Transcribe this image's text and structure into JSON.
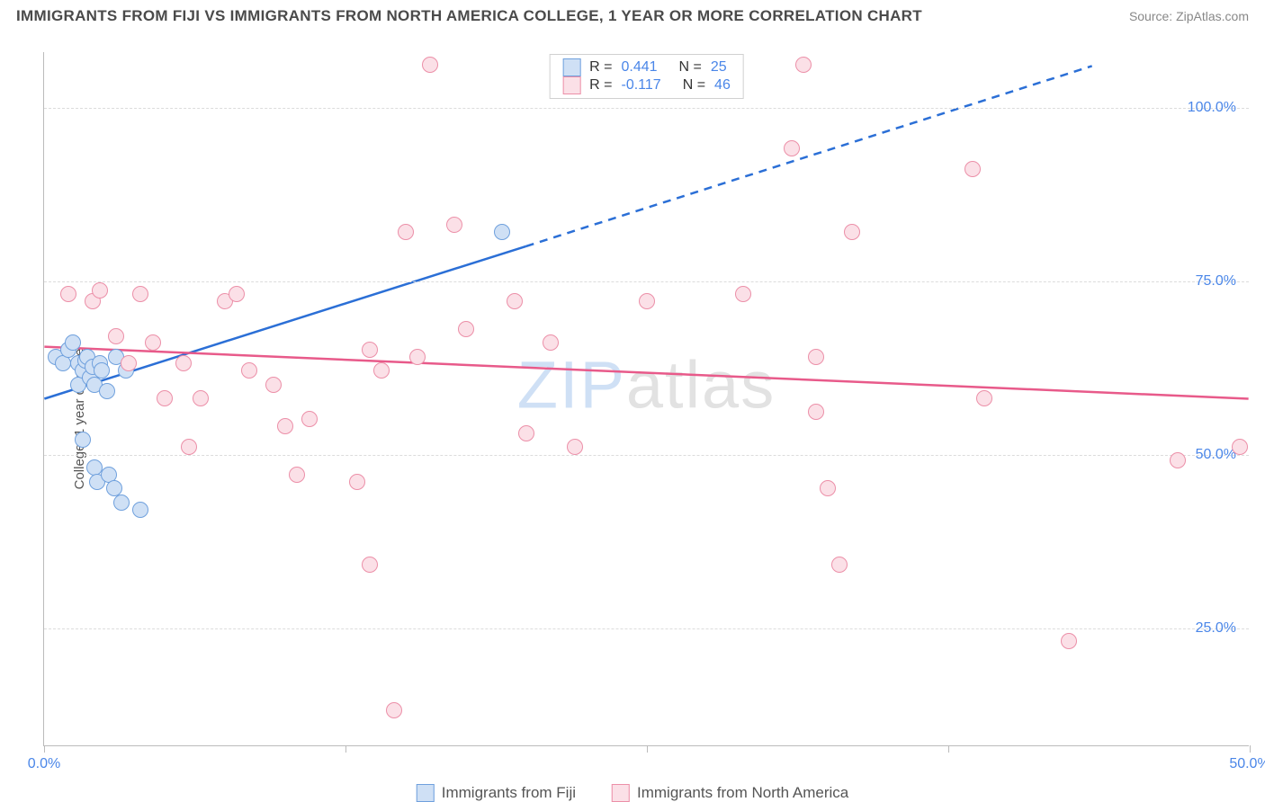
{
  "title": "IMMIGRANTS FROM FIJI VS IMMIGRANTS FROM NORTH AMERICA COLLEGE, 1 YEAR OR MORE CORRELATION CHART",
  "source": "Source: ZipAtlas.com",
  "ylabel": "College, 1 year or more",
  "watermark": {
    "part1": "ZIP",
    "part2": "atlas"
  },
  "chart": {
    "type": "scatter",
    "background_color": "#ffffff",
    "grid_color": "#dcdcdc",
    "axis_color": "#bbbbbb",
    "xlim": [
      0,
      50
    ],
    "ylim": [
      8,
      108
    ],
    "xticks": [
      0,
      12.5,
      25,
      37.5,
      50
    ],
    "xtick_labels": {
      "0": "0.0%",
      "50": "50.0%"
    },
    "yticks": [
      25,
      50,
      75,
      100
    ],
    "ytick_labels": {
      "25": "25.0%",
      "50": "50.0%",
      "75": "75.0%",
      "100": "100.0%"
    },
    "marker_radius": 9,
    "marker_border_width": 1.5,
    "series": [
      {
        "name": "Immigrants from Fiji",
        "fill_color": "#cfe0f5",
        "stroke_color": "#6fa0dd",
        "line_color": "#2b6fd6",
        "R": "0.441",
        "N": "25",
        "trend": {
          "x1": 0,
          "y1": 58,
          "x2": 20,
          "y2": 80,
          "x2_ext": 43.5,
          "y2_ext": 106
        },
        "points": [
          [
            0.5,
            64
          ],
          [
            0.8,
            63
          ],
          [
            1.0,
            65
          ],
          [
            1.2,
            66
          ],
          [
            1.4,
            60
          ],
          [
            1.4,
            63
          ],
          [
            1.6,
            62
          ],
          [
            1.7,
            63.5
          ],
          [
            1.8,
            64
          ],
          [
            1.9,
            61
          ],
          [
            2.0,
            62.5
          ],
          [
            2.1,
            60
          ],
          [
            2.1,
            48
          ],
          [
            2.2,
            46
          ],
          [
            2.3,
            63
          ],
          [
            2.4,
            62
          ],
          [
            2.6,
            59
          ],
          [
            2.7,
            47
          ],
          [
            2.9,
            45
          ],
          [
            3.0,
            64
          ],
          [
            3.2,
            43
          ],
          [
            3.4,
            62
          ],
          [
            4.0,
            42
          ],
          [
            1.6,
            52
          ],
          [
            19.0,
            82
          ]
        ]
      },
      {
        "name": "Immigrants from North America",
        "fill_color": "#fbe0e7",
        "stroke_color": "#ec8fa8",
        "line_color": "#e85a8a",
        "R": "-0.117",
        "N": "46",
        "trend": {
          "x1": 0,
          "y1": 65.5,
          "x2": 50,
          "y2": 58
        },
        "points": [
          [
            1.0,
            73
          ],
          [
            2.0,
            72
          ],
          [
            2.3,
            73.5
          ],
          [
            3.0,
            67
          ],
          [
            3.5,
            63
          ],
          [
            4.0,
            73
          ],
          [
            4.5,
            66
          ],
          [
            5.0,
            58
          ],
          [
            5.8,
            63
          ],
          [
            6.0,
            51
          ],
          [
            6.5,
            58
          ],
          [
            7.5,
            72
          ],
          [
            8.0,
            73
          ],
          [
            8.5,
            62
          ],
          [
            9.5,
            60
          ],
          [
            10.0,
            54
          ],
          [
            10.5,
            47
          ],
          [
            11.0,
            55
          ],
          [
            13.0,
            46
          ],
          [
            13.5,
            34
          ],
          [
            14.0,
            62
          ],
          [
            14.5,
            13
          ],
          [
            15.0,
            82
          ],
          [
            15.5,
            64
          ],
          [
            16.0,
            106
          ],
          [
            17.0,
            83
          ],
          [
            17.5,
            68
          ],
          [
            19.5,
            72
          ],
          [
            20.0,
            53
          ],
          [
            21.0,
            66
          ],
          [
            22.0,
            51
          ],
          [
            25.0,
            72
          ],
          [
            29.0,
            73
          ],
          [
            31.0,
            94
          ],
          [
            31.5,
            106
          ],
          [
            32.0,
            64
          ],
          [
            32.5,
            45
          ],
          [
            33.0,
            34
          ],
          [
            33.5,
            82
          ],
          [
            32.0,
            56
          ],
          [
            38.5,
            91
          ],
          [
            39.0,
            58
          ],
          [
            42.5,
            23
          ],
          [
            47.0,
            49
          ],
          [
            49.6,
            51
          ],
          [
            13.5,
            65
          ]
        ]
      }
    ]
  },
  "legend_bottom": {
    "items": [
      {
        "label": "Immigrants from Fiji",
        "fill": "#cfe0f5",
        "stroke": "#6fa0dd"
      },
      {
        "label": "Immigrants from North America",
        "fill": "#fbe0e7",
        "stroke": "#ec8fa8"
      }
    ]
  }
}
